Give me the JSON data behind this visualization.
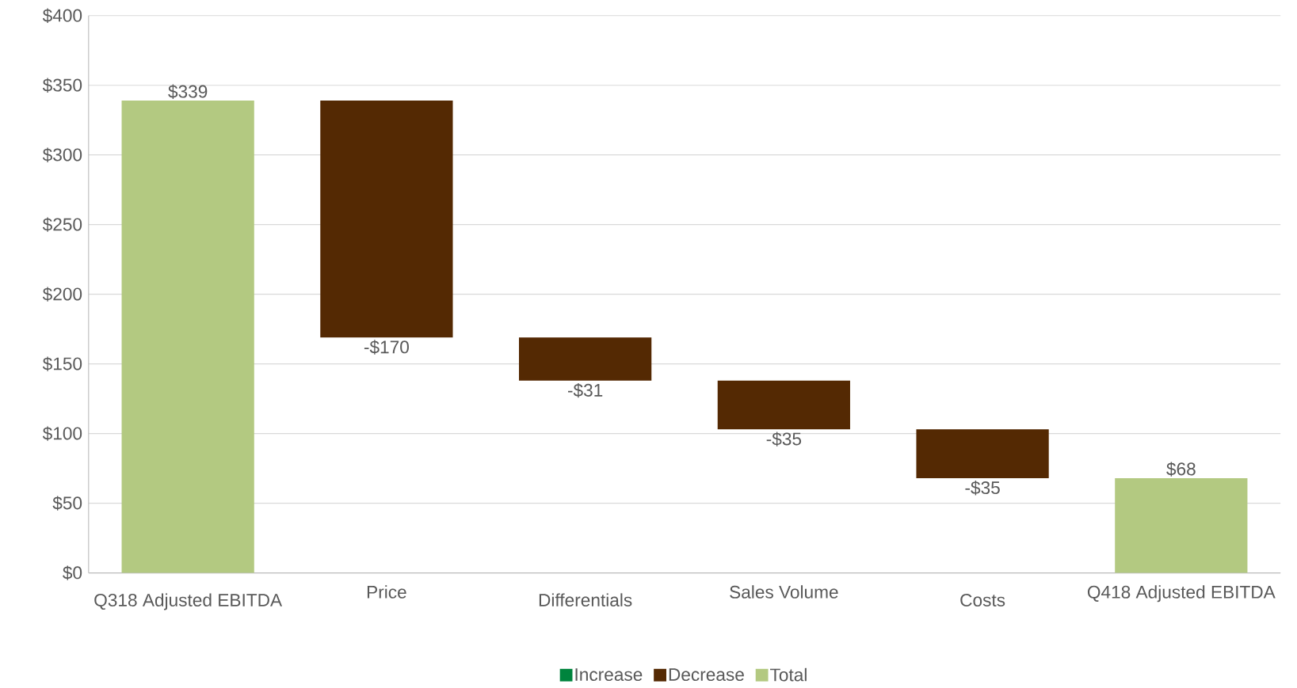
{
  "chart_data": {
    "type": "bar",
    "categories": [
      "Q318 Adjusted EBITDA",
      "Price",
      "Differentials",
      "Sales Volume",
      "Costs",
      "Q418 Adjusted EBITDA"
    ],
    "series": [
      {
        "name": "Increase",
        "color": "#00843d",
        "values": [
          null,
          null,
          null,
          null,
          null,
          null
        ]
      },
      {
        "name": "Decrease",
        "color": "#542903",
        "values": [
          null,
          -170,
          -31,
          -35,
          -35,
          null
        ],
        "base": [
          null,
          339,
          169,
          138,
          103,
          null
        ],
        "value_labels": [
          null,
          "-$170",
          "-$31",
          "-$35",
          "-$35",
          null
        ]
      },
      {
        "name": "Total",
        "color": "#b3c981",
        "values": [
          339,
          null,
          null,
          null,
          null,
          68
        ],
        "base": [
          0,
          null,
          null,
          null,
          null,
          0
        ],
        "value_labels": [
          "$339",
          null,
          null,
          null,
          null,
          "$68"
        ]
      }
    ],
    "ylim": [
      0,
      400
    ],
    "yticks": [
      {
        "value": 0,
        "label": "$0"
      },
      {
        "value": 50,
        "label": "$50"
      },
      {
        "value": 100,
        "label": "$100"
      },
      {
        "value": 150,
        "label": "$150"
      },
      {
        "value": 200,
        "label": "$200"
      },
      {
        "value": 250,
        "label": "$250"
      },
      {
        "value": 300,
        "label": "$300"
      },
      {
        "value": 350,
        "label": "$350"
      },
      {
        "value": 400,
        "label": "$400"
      }
    ],
    "grid": "y",
    "legend": "bottom"
  }
}
